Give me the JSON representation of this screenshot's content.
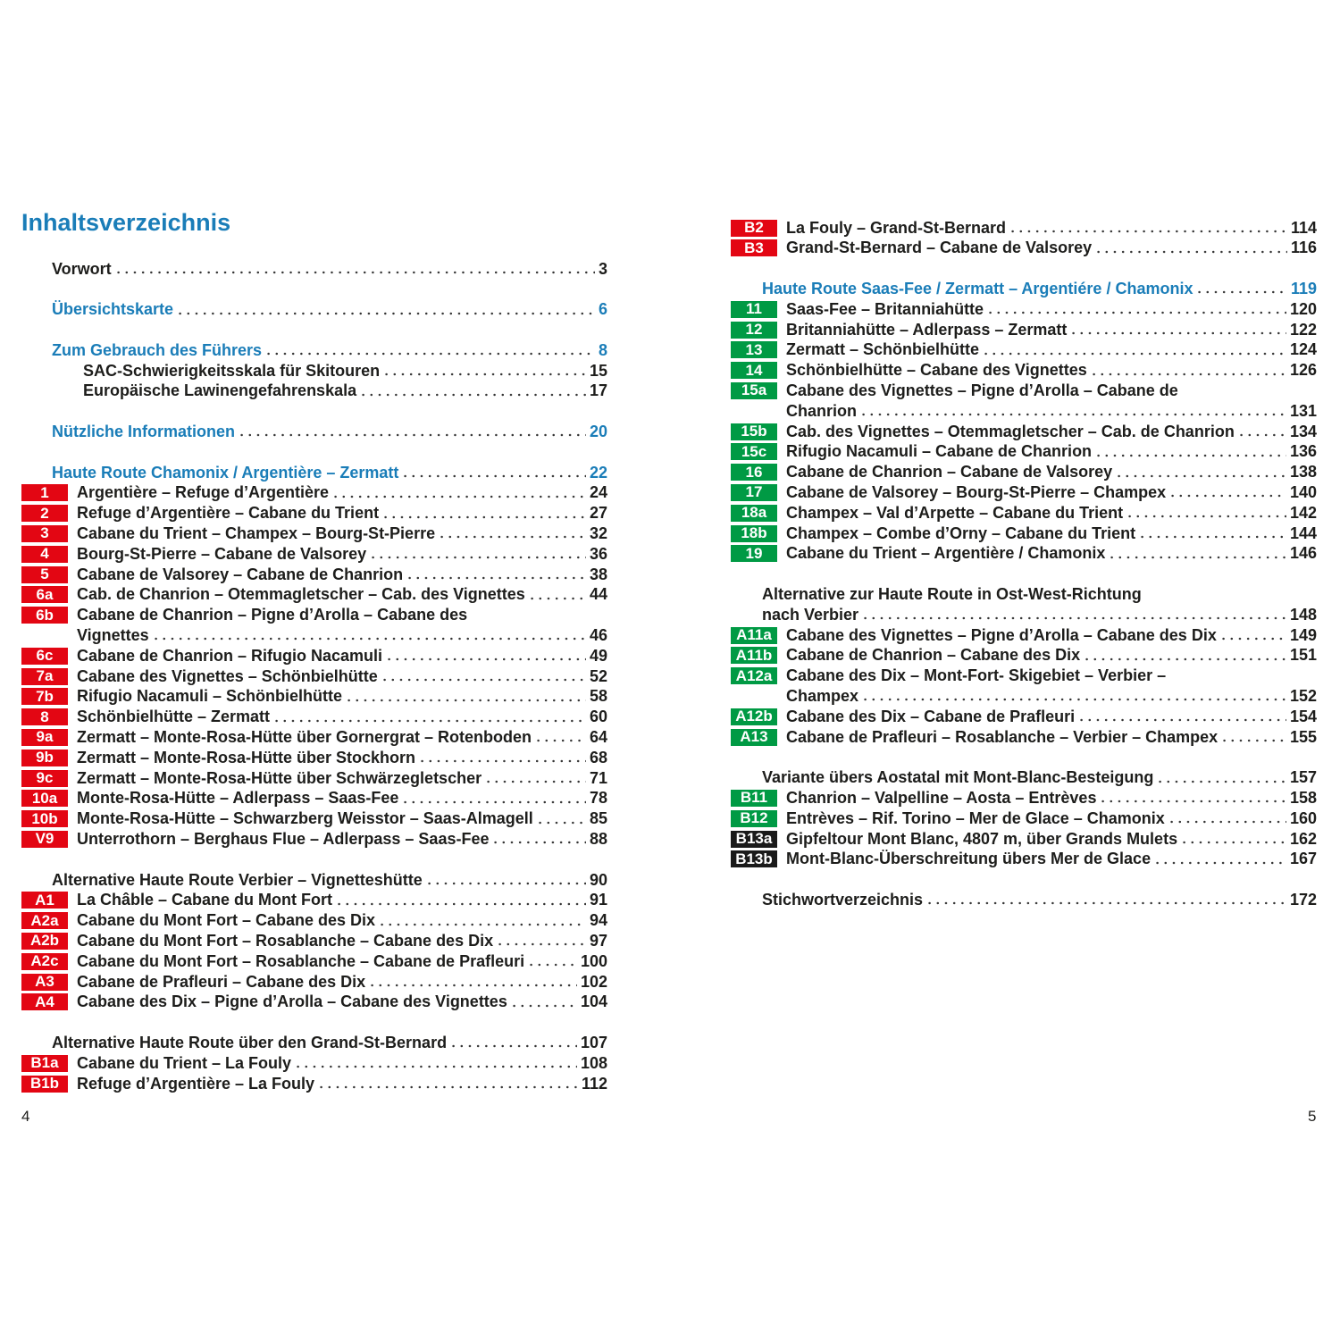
{
  "title": "Inhaltsverzeichnis",
  "pages": [
    {
      "number": 4,
      "sections": [
        {
          "entries": [
            {
              "style": "black",
              "lines": [
                "Vorwort"
              ],
              "page": 3
            }
          ]
        },
        {
          "entries": [
            {
              "style": "blue",
              "lines": [
                "Übersichtskarte"
              ],
              "page": 6
            }
          ]
        },
        {
          "entries": [
            {
              "style": "blue",
              "lines": [
                "Zum Gebrauch des Führers"
              ],
              "page": 8
            },
            {
              "style": "sub",
              "lines": [
                "SAC-Schwierigkeitsskala für Skitouren"
              ],
              "page": 15
            },
            {
              "style": "sub",
              "lines": [
                "Europäische Lawinengefahrenskala"
              ],
              "page": 17
            }
          ]
        },
        {
          "entries": [
            {
              "style": "blue",
              "lines": [
                "Nützliche Informationen"
              ],
              "page": 20
            }
          ]
        },
        {
          "entries": [
            {
              "style": "blue",
              "lines": [
                "Haute Route Chamonix / Argentière – Zermatt"
              ],
              "page": 22
            },
            {
              "badge": {
                "label": "1",
                "color": "#e30613"
              },
              "lines": [
                "Argentière – Refuge d’Argentière"
              ],
              "page": 24
            },
            {
              "badge": {
                "label": "2",
                "color": "#e30613"
              },
              "lines": [
                "Refuge d’Argentière – Cabane du Trient"
              ],
              "page": 27
            },
            {
              "badge": {
                "label": "3",
                "color": "#e30613"
              },
              "lines": [
                "Cabane du Trient – Champex – Bourg-St-Pierre"
              ],
              "page": 32
            },
            {
              "badge": {
                "label": "4",
                "color": "#e30613"
              },
              "lines": [
                "Bourg-St-Pierre – Cabane de Valsorey"
              ],
              "page": 36
            },
            {
              "badge": {
                "label": "5",
                "color": "#e30613"
              },
              "lines": [
                "Cabane de Valsorey – Cabane de Chanrion"
              ],
              "page": 38
            },
            {
              "badge": {
                "label": "6a",
                "color": "#e30613"
              },
              "lines": [
                "Cab. de Chanrion – Otemmagletscher – Cab. des Vignettes"
              ],
              "page": 44
            },
            {
              "badge": {
                "label": "6b",
                "color": "#e30613"
              },
              "lines": [
                "Cabane de Chanrion – Pigne d’Arolla – Cabane des",
                "Vignettes"
              ],
              "page": 46
            },
            {
              "badge": {
                "label": "6c",
                "color": "#e30613"
              },
              "lines": [
                "Cabane de Chanrion – Rifugio Nacamuli"
              ],
              "page": 49
            },
            {
              "badge": {
                "label": "7a",
                "color": "#e30613"
              },
              "lines": [
                "Cabane des Vignettes – Schönbielhütte"
              ],
              "page": 52
            },
            {
              "badge": {
                "label": "7b",
                "color": "#e30613"
              },
              "lines": [
                "Rifugio Nacamuli – Schönbielhütte"
              ],
              "page": 58
            },
            {
              "badge": {
                "label": "8",
                "color": "#e30613"
              },
              "lines": [
                "Schönbielhütte – Zermatt"
              ],
              "page": 60
            },
            {
              "badge": {
                "label": "9a",
                "color": "#e30613"
              },
              "lines": [
                "Zermatt – Monte-Rosa-Hütte über Gornergrat – Rotenboden"
              ],
              "page": 64
            },
            {
              "badge": {
                "label": "9b",
                "color": "#e30613"
              },
              "lines": [
                "Zermatt – Monte-Rosa-Hütte über Stockhorn"
              ],
              "page": 68
            },
            {
              "badge": {
                "label": "9c",
                "color": "#e30613"
              },
              "lines": [
                "Zermatt – Monte-Rosa-Hütte über Schwärzegletscher"
              ],
              "page": 71
            },
            {
              "badge": {
                "label": "10a",
                "color": "#e30613"
              },
              "lines": [
                "Monte-Rosa-Hütte – Adlerpass – Saas-Fee"
              ],
              "page": 78
            },
            {
              "badge": {
                "label": "10b",
                "color": "#e30613"
              },
              "lines": [
                "Monte-Rosa-Hütte – Schwarzberg Weisstor – Saas-Almagell"
              ],
              "page": 85
            },
            {
              "badge": {
                "label": "V9",
                "color": "#e30613"
              },
              "lines": [
                "Unterrothorn – Berghaus Flue – Adlerpass – Saas-Fee"
              ],
              "page": 88
            }
          ]
        },
        {
          "entries": [
            {
              "style": "black",
              "lines": [
                "Alternative Haute Route Verbier – Vignetteshütte"
              ],
              "page": 90
            },
            {
              "badge": {
                "label": "A1",
                "color": "#e30613"
              },
              "lines": [
                "La Châble – Cabane du Mont Fort"
              ],
              "page": 91
            },
            {
              "badge": {
                "label": "A2a",
                "color": "#e30613"
              },
              "lines": [
                "Cabane du Mont Fort – Cabane des Dix"
              ],
              "page": 94
            },
            {
              "badge": {
                "label": "A2b",
                "color": "#e30613"
              },
              "lines": [
                "Cabane du Mont Fort – Rosablanche – Cabane des Dix"
              ],
              "page": 97
            },
            {
              "badge": {
                "label": "A2c",
                "color": "#e30613"
              },
              "lines": [
                "Cabane du Mont Fort – Rosablanche – Cabane de Prafleuri"
              ],
              "page": 100
            },
            {
              "badge": {
                "label": "A3",
                "color": "#e30613"
              },
              "lines": [
                "Cabane de Prafleuri – Cabane des Dix"
              ],
              "page": 102
            },
            {
              "badge": {
                "label": "A4",
                "color": "#e30613"
              },
              "lines": [
                "Cabane des Dix – Pigne d’Arolla – Cabane des Vignettes"
              ],
              "page": 104
            }
          ]
        },
        {
          "entries": [
            {
              "style": "black",
              "lines": [
                "Alternative Haute Route über den Grand-St-Bernard"
              ],
              "page": 107
            },
            {
              "badge": {
                "label": "B1a",
                "color": "#e30613"
              },
              "lines": [
                "Cabane du Trient – La Fouly"
              ],
              "page": 108
            },
            {
              "badge": {
                "label": "B1b",
                "color": "#e30613"
              },
              "lines": [
                "Refuge d’Argentière – La Fouly"
              ],
              "page": 112
            }
          ]
        }
      ]
    },
    {
      "number": 5,
      "sections": [
        {
          "entries": [
            {
              "badge": {
                "label": "B2",
                "color": "#e30613"
              },
              "lines": [
                "La Fouly – Grand-St-Bernard"
              ],
              "page": 114
            },
            {
              "badge": {
                "label": "B3",
                "color": "#e30613"
              },
              "lines": [
                "Grand-St-Bernard – Cabane de Valsorey"
              ],
              "page": 116
            }
          ]
        },
        {
          "entries": [
            {
              "style": "blue",
              "lines": [
                "Haute Route Saas-Fee / Zermatt – Argentiére / Chamonix"
              ],
              "page": 119
            },
            {
              "badge": {
                "label": "11",
                "color": "#009a44"
              },
              "lines": [
                "Saas-Fee – Britanniahütte"
              ],
              "page": 120
            },
            {
              "badge": {
                "label": "12",
                "color": "#009a44"
              },
              "lines": [
                "Britanniahütte – Adlerpass – Zermatt"
              ],
              "page": 122
            },
            {
              "badge": {
                "label": "13",
                "color": "#009a44"
              },
              "lines": [
                "Zermatt – Schönbielhütte"
              ],
              "page": 124
            },
            {
              "badge": {
                "label": "14",
                "color": "#009a44"
              },
              "lines": [
                "Schönbielhütte – Cabane des Vignettes"
              ],
              "page": 126
            },
            {
              "badge": {
                "label": "15a",
                "color": "#009a44"
              },
              "lines": [
                "Cabane des Vignettes – Pigne d’Arolla – Cabane de",
                "Chanrion"
              ],
              "page": 131
            },
            {
              "badge": {
                "label": "15b",
                "color": "#009a44"
              },
              "lines": [
                "Cab. des Vignettes – Otemmagletscher – Cab. de Chanrion"
              ],
              "page": 134
            },
            {
              "badge": {
                "label": "15c",
                "color": "#009a44"
              },
              "lines": [
                "Rifugio Nacamuli – Cabane de Chanrion"
              ],
              "page": 136
            },
            {
              "badge": {
                "label": "16",
                "color": "#009a44"
              },
              "lines": [
                "Cabane de Chanrion – Cabane de Valsorey"
              ],
              "page": 138
            },
            {
              "badge": {
                "label": "17",
                "color": "#009a44"
              },
              "lines": [
                "Cabane de Valsorey – Bourg-St-Pierre – Champex"
              ],
              "page": 140
            },
            {
              "badge": {
                "label": "18a",
                "color": "#009a44"
              },
              "lines": [
                "Champex – Val d’Arpette – Cabane du Trient"
              ],
              "page": 142
            },
            {
              "badge": {
                "label": "18b",
                "color": "#009a44"
              },
              "lines": [
                "Champex – Combe d’Orny – Cabane du Trient"
              ],
              "page": 144
            },
            {
              "badge": {
                "label": "19",
                "color": "#009a44"
              },
              "lines": [
                "Cabane du Trient – Argentière / Chamonix"
              ],
              "page": 146
            }
          ]
        },
        {
          "entries": [
            {
              "style": "black",
              "lines": [
                "Alternative zur Haute Route in Ost-West-Richtung",
                "nach Verbier"
              ],
              "page": 148
            },
            {
              "badge": {
                "label": "A11a",
                "color": "#009a44"
              },
              "lines": [
                "Cabane des Vignettes – Pigne d’Arolla – Cabane des Dix"
              ],
              "page": 149
            },
            {
              "badge": {
                "label": "A11b",
                "color": "#009a44"
              },
              "lines": [
                "Cabane de Chanrion – Cabane des Dix"
              ],
              "page": 151
            },
            {
              "badge": {
                "label": "A12a",
                "color": "#009a44"
              },
              "lines": [
                "Cabane des Dix – Mont-Fort- Skigebiet – Verbier –",
                "Champex"
              ],
              "page": 152
            },
            {
              "badge": {
                "label": "A12b",
                "color": "#009a44"
              },
              "lines": [
                "Cabane des Dix – Cabane de Prafleuri"
              ],
              "page": 154
            },
            {
              "badge": {
                "label": "A13",
                "color": "#009a44"
              },
              "lines": [
                "Cabane de Prafleuri – Rosablanche – Verbier – Champex"
              ],
              "page": 155
            }
          ]
        },
        {
          "entries": [
            {
              "style": "black",
              "lines": [
                "Variante übers Aostatal mit Mont-Blanc-Besteigung"
              ],
              "page": 157
            },
            {
              "badge": {
                "label": "B11",
                "color": "#009a44"
              },
              "lines": [
                "Chanrion – Valpelline – Aosta – Entrèves"
              ],
              "page": 158
            },
            {
              "badge": {
                "label": "B12",
                "color": "#009a44"
              },
              "lines": [
                "Entrèves – Rif. Torino – Mer de Glace – Chamonix"
              ],
              "page": 160
            },
            {
              "badge": {
                "label": "B13a",
                "color": "#1a1a1a"
              },
              "lines": [
                "Gipfeltour Mont Blanc, 4807 m, über Grands Mulets"
              ],
              "page": 162
            },
            {
              "badge": {
                "label": "B13b",
                "color": "#1a1a1a"
              },
              "lines": [
                "Mont-Blanc-Überschreitung übers Mer de Glace"
              ],
              "page": 167
            }
          ]
        },
        {
          "entries": [
            {
              "style": "black",
              "lines": [
                "Stichwortverzeichnis"
              ],
              "page": 172
            }
          ]
        }
      ]
    }
  ]
}
